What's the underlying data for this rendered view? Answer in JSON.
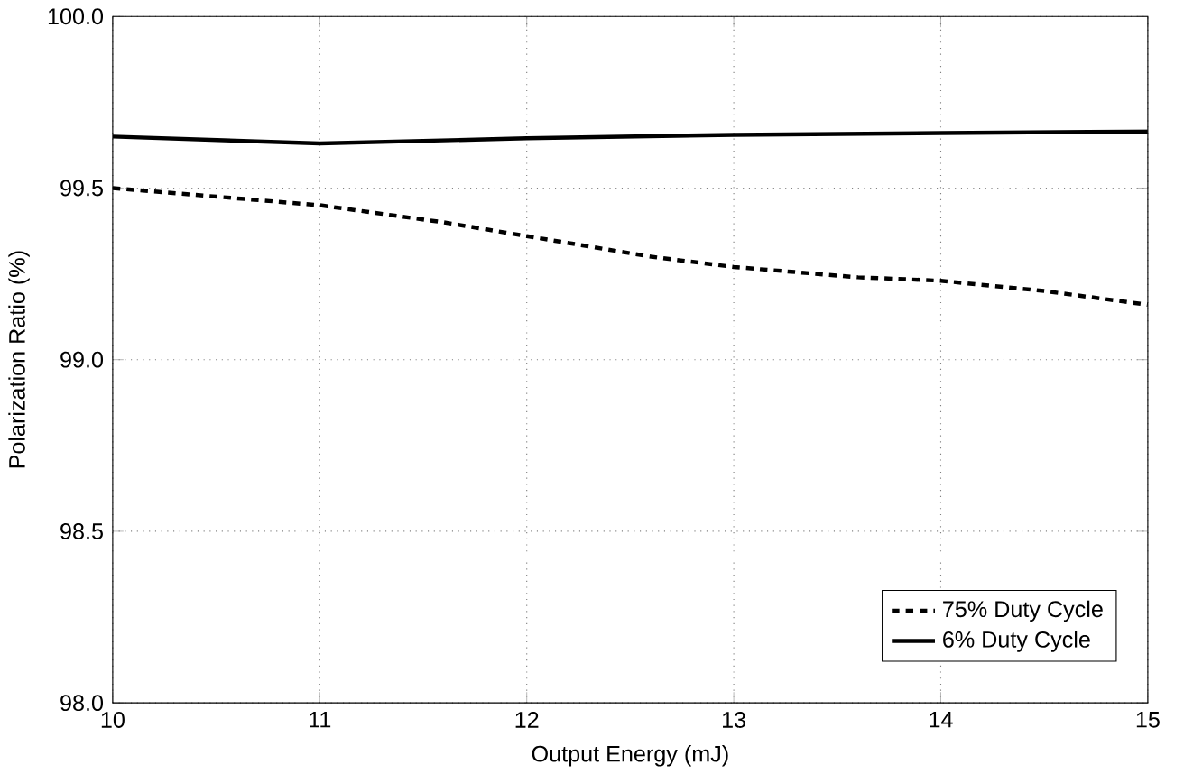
{
  "chart_data": {
    "type": "line",
    "xlabel": "Output Energy (mJ)",
    "ylabel": "Polarization Ratio (%)",
    "xlim": [
      10,
      15
    ],
    "ylim": [
      98,
      100
    ],
    "xticks": [
      10,
      11,
      12,
      13,
      14,
      15
    ],
    "yticks": [
      {
        "value": 98,
        "label": "98.0"
      },
      {
        "value": 98.5,
        "label": "98.5"
      },
      {
        "value": 99,
        "label": "99.0"
      },
      {
        "value": 99.5,
        "label": "99.5"
      },
      {
        "value": 100,
        "label": "100.0"
      }
    ],
    "grid": true,
    "legend": "bottom right",
    "marker": "none",
    "series": [
      {
        "name": "75% Duty Cycle",
        "color": "#000000",
        "line_style": "dashed",
        "x": [
          10,
          10.4,
          10.8,
          11,
          11.6,
          12,
          12.6,
          13,
          13.6,
          14,
          14.5,
          15
        ],
        "values": [
          99.5,
          99.48,
          99.46,
          99.45,
          99.4,
          99.36,
          99.3,
          99.27,
          99.24,
          99.23,
          99.2,
          99.16
        ]
      },
      {
        "name": "6% Duty Cycle",
        "color": "#000000",
        "line_style": "solid",
        "x": [
          10,
          11,
          12,
          13,
          14,
          15
        ],
        "values": [
          99.65,
          99.63,
          99.645,
          99.655,
          99.66,
          99.665
        ]
      }
    ]
  }
}
